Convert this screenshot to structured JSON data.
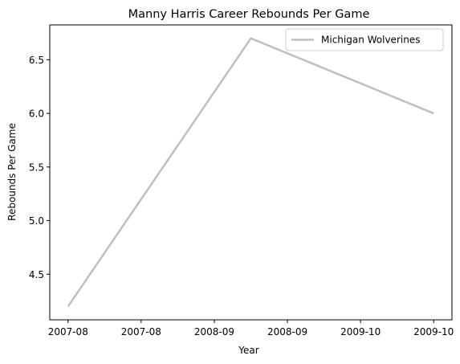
{
  "chart_data": {
    "type": "line",
    "title": "Manny Harris Career Rebounds Per Game",
    "xlabel": "Year",
    "ylabel": "Rebounds Per Game",
    "x_ticks": [
      "2007-08",
      "2007-08",
      "2008-09",
      "2008-09",
      "2009-10",
      "2009-10"
    ],
    "y_ticks": [
      4.5,
      5.0,
      5.5,
      6.0,
      6.5
    ],
    "y_tick_labels": [
      "4.5",
      "5.0",
      "5.5",
      "6.0",
      "6.5"
    ],
    "x": [
      "2007-08",
      "2008-09",
      "2009-10"
    ],
    "xlim": [
      -0.1,
      2.1
    ],
    "ylim": [
      4.075,
      6.825
    ],
    "series": [
      {
        "name": "Michigan Wolverines",
        "x_index": [
          0,
          1,
          2
        ],
        "values": [
          4.2,
          6.7,
          6.0
        ],
        "color": "#bfbfbf"
      }
    ],
    "legend_position": "upper right",
    "grid": false
  }
}
